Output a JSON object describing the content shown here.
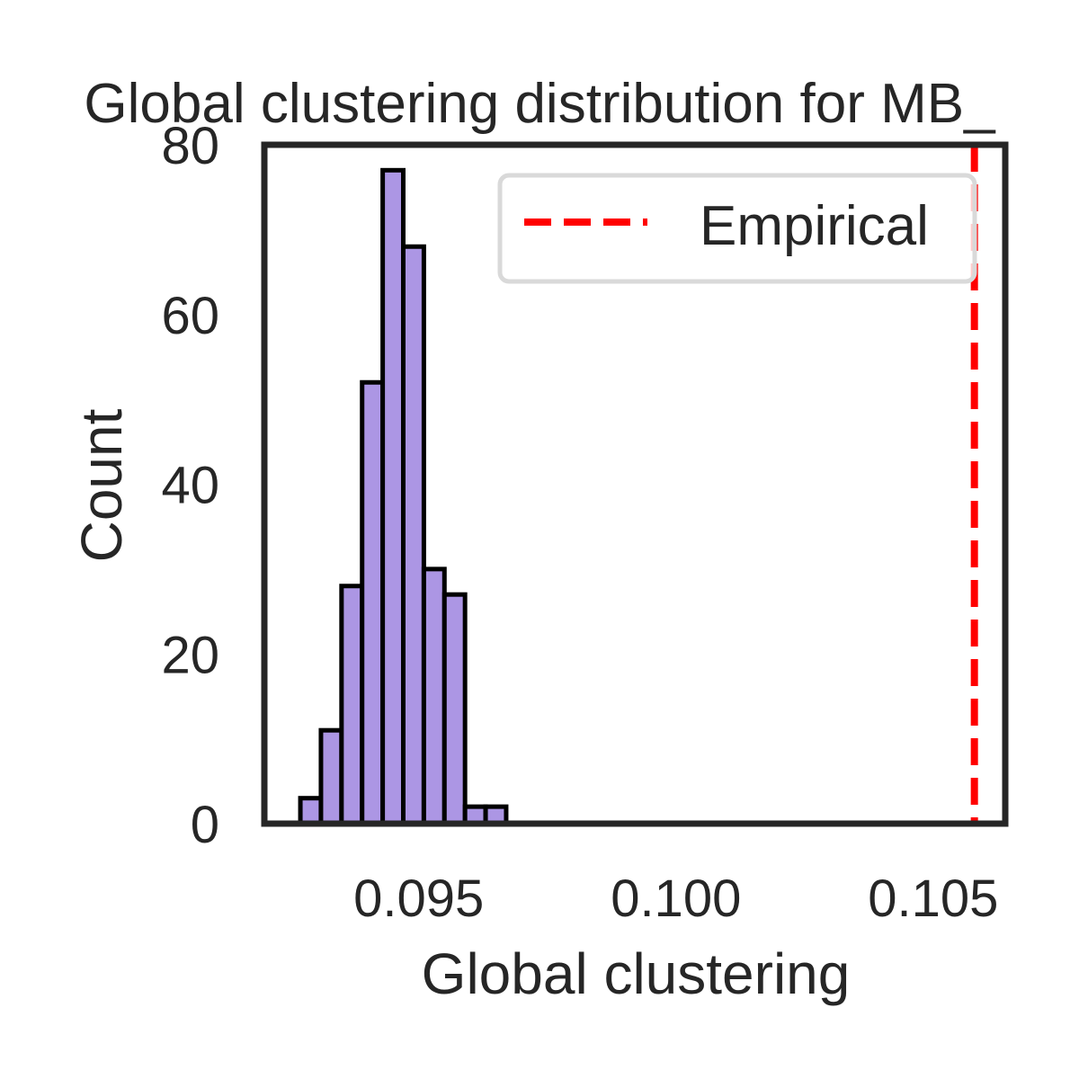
{
  "chart_data": {
    "type": "bar",
    "title": "Global clustering distribution for MB_",
    "xlabel": "Global clustering",
    "ylabel": "Count",
    "xlim": [
      0.092,
      0.1064
    ],
    "ylim": [
      0,
      80
    ],
    "xticks": [
      0.095,
      0.1,
      0.105
    ],
    "xtick_labels": [
      "0.095",
      "0.100",
      "0.105"
    ],
    "yticks": [
      0,
      20,
      40,
      60,
      80
    ],
    "ytick_labels": [
      "0",
      "20",
      "40",
      "60",
      "80"
    ],
    "bin_width": 0.0004,
    "bins": [
      {
        "x0": 0.0927,
        "count": 3
      },
      {
        "x0": 0.0931,
        "count": 11
      },
      {
        "x0": 0.0935,
        "count": 28
      },
      {
        "x0": 0.0939,
        "count": 52
      },
      {
        "x0": 0.0943,
        "count": 77
      },
      {
        "x0": 0.0947,
        "count": 68
      },
      {
        "x0": 0.0951,
        "count": 30
      },
      {
        "x0": 0.0955,
        "count": 27
      },
      {
        "x0": 0.0959,
        "count": 2
      },
      {
        "x0": 0.0963,
        "count": 2
      }
    ],
    "empirical_x": 0.1058,
    "legend": {
      "label": "Empirical",
      "placement": "top-right"
    },
    "grid": false,
    "colors": {
      "bar_fill": "#ac96e4",
      "bar_edge": "#000000",
      "empirical_line": "#ff0000",
      "axes": "#262626"
    }
  }
}
